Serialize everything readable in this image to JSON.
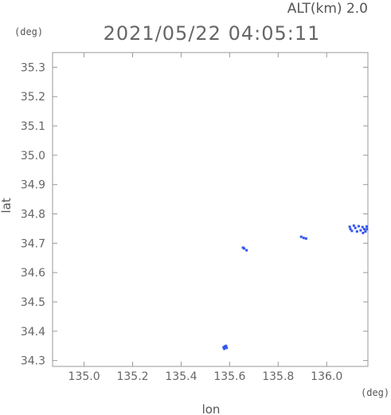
{
  "header": {
    "alt_label": "ALT(km) 2.0",
    "datetime": "2021/05/22 04:05:11",
    "y_unit": "(deg)",
    "x_unit": "(deg)"
  },
  "chart_data": {
    "type": "scatter",
    "xlabel": "lon",
    "ylabel": "lat",
    "xlim": [
      134.87,
      136.17
    ],
    "ylim": [
      34.28,
      35.35
    ],
    "x_ticks": [
      135.0,
      135.2,
      135.4,
      135.6,
      135.8,
      136.0
    ],
    "x_tick_labels": [
      "135.0",
      "135.2",
      "135.4",
      "135.6",
      "135.8",
      "136.0"
    ],
    "y_ticks": [
      34.3,
      34.4,
      34.5,
      34.6,
      34.7,
      34.8,
      34.9,
      35.0,
      35.1,
      35.2,
      35.3
    ],
    "y_tick_labels": [
      "34.3",
      "34.4",
      "34.5",
      "34.6",
      "34.7",
      "34.8",
      "34.9",
      "35.0",
      "35.1",
      "35.2",
      "35.3"
    ],
    "grid": false,
    "point_color": "#3355ee",
    "points": [
      {
        "x": 135.575,
        "y": 34.345
      },
      {
        "x": 135.58,
        "y": 34.348
      },
      {
        "x": 135.585,
        "y": 34.35
      },
      {
        "x": 135.578,
        "y": 34.34
      },
      {
        "x": 135.588,
        "y": 34.343
      },
      {
        "x": 135.655,
        "y": 34.685
      },
      {
        "x": 135.66,
        "y": 34.682
      },
      {
        "x": 135.67,
        "y": 34.676
      },
      {
        "x": 135.895,
        "y": 34.722
      },
      {
        "x": 135.905,
        "y": 34.718
      },
      {
        "x": 135.915,
        "y": 34.716
      },
      {
        "x": 136.095,
        "y": 34.756
      },
      {
        "x": 136.098,
        "y": 34.748
      },
      {
        "x": 136.104,
        "y": 34.742
      },
      {
        "x": 136.112,
        "y": 34.76
      },
      {
        "x": 136.118,
        "y": 34.752
      },
      {
        "x": 136.125,
        "y": 34.74
      },
      {
        "x": 136.132,
        "y": 34.758
      },
      {
        "x": 136.14,
        "y": 34.744
      },
      {
        "x": 136.148,
        "y": 34.755
      },
      {
        "x": 136.155,
        "y": 34.748
      },
      {
        "x": 136.16,
        "y": 34.74
      },
      {
        "x": 136.165,
        "y": 34.757
      },
      {
        "x": 136.15,
        "y": 34.735
      },
      {
        "x": 136.166,
        "y": 34.748
      }
    ]
  }
}
